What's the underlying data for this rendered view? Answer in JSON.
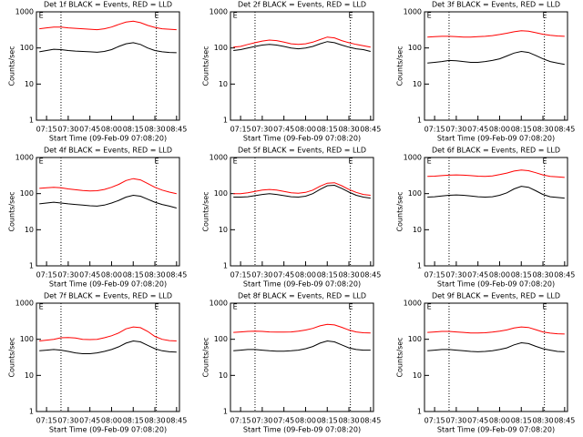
{
  "chart_data": [
    {
      "type": "line",
      "title": "Det 1f BLACK = Events, RED = LLD",
      "xlabel": "Start Time (09-Feb-09 07:08:20)",
      "ylabel": "Counts/sec",
      "log_y": true,
      "x": [
        "07:10",
        "07:15",
        "07:20",
        "07:25",
        "07:30",
        "07:35",
        "07:40",
        "07:45",
        "07:50",
        "07:55",
        "08:00",
        "08:05",
        "08:10",
        "08:15",
        "08:20",
        "08:25",
        "08:30",
        "08:35",
        "08:40",
        "08:45"
      ],
      "xlim": [
        "07:08",
        "08:47"
      ],
      "xticks": [
        "07:15",
        "07:30",
        "07:45",
        "08:00",
        "08:15",
        "08:30",
        "08:45"
      ],
      "ylim": [
        1,
        1000
      ],
      "yticks": [
        1,
        10,
        100,
        1000
      ],
      "markers": [
        "07:25",
        "08:31"
      ],
      "annotations": [
        {
          "text": "E",
          "x": "07:09"
        },
        {
          "text": "E",
          "x": "08:29"
        }
      ],
      "series": [
        {
          "color": "#000000",
          "values": [
            78,
            85,
            92,
            90,
            85,
            82,
            80,
            78,
            76,
            80,
            90,
            110,
            130,
            140,
            125,
            100,
            85,
            78,
            75,
            74
          ]
        },
        {
          "color": "#ff0000",
          "values": [
            340,
            360,
            380,
            380,
            360,
            350,
            340,
            330,
            320,
            340,
            380,
            450,
            520,
            550,
            500,
            420,
            370,
            340,
            330,
            320
          ]
        }
      ]
    },
    {
      "type": "line",
      "title": "Det 2f BLACK = Events, RED = LLD",
      "xlabel": "Start Time (09-Feb-09 07:08:20)",
      "ylabel": "Counts/sec",
      "log_y": true,
      "x": [
        "07:10",
        "07:15",
        "07:20",
        "07:25",
        "07:30",
        "07:35",
        "07:40",
        "07:45",
        "07:50",
        "07:55",
        "08:00",
        "08:05",
        "08:10",
        "08:15",
        "08:20",
        "08:25",
        "08:30",
        "08:35",
        "08:40",
        "08:45"
      ],
      "xlim": [
        "07:08",
        "08:47"
      ],
      "xticks": [
        "07:15",
        "07:30",
        "07:45",
        "08:00",
        "08:15",
        "08:30",
        "08:45"
      ],
      "ylim": [
        1,
        1000
      ],
      "yticks": [
        1,
        10,
        100,
        1000
      ],
      "markers": [
        "07:25",
        "08:31"
      ],
      "annotations": [
        {
          "text": "E",
          "x": "07:09"
        },
        {
          "text": "E",
          "x": "08:29"
        }
      ],
      "series": [
        {
          "color": "#000000",
          "values": [
            85,
            90,
            100,
            110,
            120,
            125,
            120,
            110,
            100,
            95,
            100,
            110,
            130,
            150,
            140,
            120,
            105,
            95,
            90,
            80
          ]
        },
        {
          "color": "#ff0000",
          "values": [
            105,
            110,
            125,
            140,
            155,
            165,
            160,
            145,
            130,
            125,
            130,
            145,
            170,
            200,
            190,
            160,
            140,
            125,
            115,
            105
          ]
        }
      ]
    },
    {
      "type": "line",
      "title": "Det 3f BLACK = Events, RED = LLD",
      "xlabel": "Start Time (09-Feb-09 07:08:20)",
      "ylabel": "Counts/sec",
      "log_y": true,
      "x": [
        "07:10",
        "07:15",
        "07:20",
        "07:25",
        "07:30",
        "07:35",
        "07:40",
        "07:45",
        "07:50",
        "07:55",
        "08:00",
        "08:05",
        "08:10",
        "08:15",
        "08:20",
        "08:25",
        "08:30",
        "08:35",
        "08:40",
        "08:45"
      ],
      "xlim": [
        "07:08",
        "08:47"
      ],
      "xticks": [
        "07:15",
        "07:30",
        "07:45",
        "08:00",
        "08:15",
        "08:30",
        "08:45"
      ],
      "ylim": [
        1,
        1000
      ],
      "yticks": [
        1,
        10,
        100,
        1000
      ],
      "markers": [
        "07:25",
        "08:31"
      ],
      "annotations": [
        {
          "text": "E",
          "x": "07:09"
        },
        {
          "text": "E",
          "x": "08:29"
        }
      ],
      "series": [
        {
          "color": "#000000",
          "values": [
            38,
            40,
            42,
            45,
            44,
            42,
            40,
            40,
            42,
            45,
            50,
            60,
            72,
            80,
            75,
            62,
            50,
            42,
            38,
            35
          ]
        },
        {
          "color": "#ff0000",
          "values": [
            200,
            205,
            210,
            210,
            205,
            200,
            200,
            205,
            210,
            220,
            235,
            255,
            280,
            300,
            290,
            265,
            240,
            225,
            215,
            210
          ]
        }
      ]
    },
    {
      "type": "line",
      "title": "Det 4f BLACK = Events, RED = LLD",
      "xlabel": "Start Time (09-Feb-09 07:08:20)",
      "ylabel": "Counts/sec",
      "log_y": true,
      "x": [
        "07:10",
        "07:15",
        "07:20",
        "07:25",
        "07:30",
        "07:35",
        "07:40",
        "07:45",
        "07:50",
        "07:55",
        "08:00",
        "08:05",
        "08:10",
        "08:15",
        "08:20",
        "08:25",
        "08:30",
        "08:35",
        "08:40",
        "08:45"
      ],
      "xlim": [
        "07:08",
        "08:47"
      ],
      "xticks": [
        "07:15",
        "07:30",
        "07:45",
        "08:00",
        "08:15",
        "08:30",
        "08:45"
      ],
      "ylim": [
        1,
        1000
      ],
      "yticks": [
        1,
        10,
        100,
        1000
      ],
      "markers": [
        "07:25",
        "08:31"
      ],
      "annotations": [
        {
          "text": "E",
          "x": "07:09"
        },
        {
          "text": "E",
          "x": "08:29"
        }
      ],
      "series": [
        {
          "color": "#000000",
          "values": [
            52,
            55,
            58,
            55,
            52,
            50,
            48,
            46,
            45,
            48,
            55,
            65,
            80,
            90,
            85,
            70,
            58,
            50,
            45,
            40
          ]
        },
        {
          "color": "#ff0000",
          "values": [
            140,
            145,
            150,
            145,
            135,
            128,
            122,
            118,
            120,
            130,
            150,
            180,
            230,
            260,
            240,
            190,
            150,
            125,
            110,
            100
          ]
        }
      ]
    },
    {
      "type": "line",
      "title": "Det 5f BLACK = Events, RED = LLD",
      "xlabel": "Start Time (09-Feb-09 07:08:20)",
      "ylabel": "Counts/sec",
      "log_y": true,
      "x": [
        "07:10",
        "07:15",
        "07:20",
        "07:25",
        "07:30",
        "07:35",
        "07:40",
        "07:45",
        "07:50",
        "07:55",
        "08:00",
        "08:05",
        "08:10",
        "08:15",
        "08:20",
        "08:25",
        "08:30",
        "08:35",
        "08:40",
        "08:45"
      ],
      "xlim": [
        "07:08",
        "08:47"
      ],
      "xticks": [
        "07:15",
        "07:30",
        "07:45",
        "08:00",
        "08:15",
        "08:30",
        "08:45"
      ],
      "ylim": [
        1,
        1000
      ],
      "yticks": [
        1,
        10,
        100,
        1000
      ],
      "markers": [
        "07:25",
        "08:31"
      ],
      "annotations": [
        {
          "text": "E",
          "x": "07:09"
        },
        {
          "text": "E",
          "x": "08:29"
        }
      ],
      "series": [
        {
          "color": "#000000",
          "values": [
            80,
            80,
            82,
            88,
            95,
            100,
            95,
            88,
            82,
            80,
            85,
            100,
            130,
            165,
            170,
            140,
            110,
            90,
            80,
            75
          ]
        },
        {
          "color": "#ff0000",
          "values": [
            100,
            100,
            105,
            115,
            125,
            130,
            125,
            115,
            105,
            102,
            108,
            125,
            160,
            195,
            200,
            165,
            130,
            108,
            95,
            90
          ]
        }
      ]
    },
    {
      "type": "line",
      "title": "Det 6f BLACK = Events, RED = LLD",
      "xlabel": "Start Time (09-Feb-09 07:08:20)",
      "ylabel": "Counts/sec",
      "log_y": true,
      "x": [
        "07:10",
        "07:15",
        "07:20",
        "07:25",
        "07:30",
        "07:35",
        "07:40",
        "07:45",
        "07:50",
        "07:55",
        "08:00",
        "08:05",
        "08:10",
        "08:15",
        "08:20",
        "08:25",
        "08:30",
        "08:35",
        "08:40",
        "08:45"
      ],
      "xlim": [
        "07:08",
        "08:47"
      ],
      "xticks": [
        "07:15",
        "07:30",
        "07:45",
        "08:00",
        "08:15",
        "08:30",
        "08:45"
      ],
      "ylim": [
        1,
        1000
      ],
      "yticks": [
        1,
        10,
        100,
        1000
      ],
      "markers": [
        "07:25",
        "08:31"
      ],
      "annotations": [
        {
          "text": "E",
          "x": "07:09"
        },
        {
          "text": "E",
          "x": "08:29"
        }
      ],
      "series": [
        {
          "color": "#000000",
          "values": [
            80,
            82,
            86,
            90,
            92,
            90,
            86,
            82,
            80,
            82,
            90,
            105,
            135,
            160,
            150,
            120,
            95,
            82,
            78,
            75
          ]
        },
        {
          "color": "#ff0000",
          "values": [
            300,
            305,
            315,
            325,
            330,
            325,
            315,
            305,
            300,
            310,
            335,
            370,
            420,
            450,
            430,
            380,
            330,
            300,
            290,
            280
          ]
        }
      ]
    },
    {
      "type": "line",
      "title": "Det 7f BLACK = Events, RED = LLD",
      "xlabel": "Start Time (09-Feb-09 07:08:20)",
      "ylabel": "Counts/sec",
      "log_y": true,
      "x": [
        "07:10",
        "07:15",
        "07:20",
        "07:25",
        "07:30",
        "07:35",
        "07:40",
        "07:45",
        "07:50",
        "07:55",
        "08:00",
        "08:05",
        "08:10",
        "08:15",
        "08:20",
        "08:25",
        "08:30",
        "08:35",
        "08:40",
        "08:45"
      ],
      "xlim": [
        "07:08",
        "08:47"
      ],
      "xticks": [
        "07:15",
        "07:30",
        "07:45",
        "08:00",
        "08:15",
        "08:30",
        "08:45"
      ],
      "ylim": [
        1,
        1000
      ],
      "yticks": [
        1,
        10,
        100,
        1000
      ],
      "markers": [
        "07:25",
        "08:31"
      ],
      "annotations": [
        {
          "text": "E",
          "x": "07:09"
        },
        {
          "text": "E",
          "x": "08:29"
        }
      ],
      "series": [
        {
          "color": "#000000",
          "values": [
            48,
            50,
            52,
            50,
            46,
            42,
            40,
            40,
            42,
            46,
            52,
            62,
            78,
            90,
            85,
            68,
            55,
            48,
            45,
            44
          ]
        },
        {
          "color": "#ff0000",
          "values": [
            90,
            95,
            100,
            110,
            112,
            108,
            100,
            98,
            100,
            110,
            125,
            150,
            195,
            220,
            210,
            165,
            120,
            100,
            92,
            90
          ]
        }
      ]
    },
    {
      "type": "line",
      "title": "Det 8f BLACK = Events, RED = LLD",
      "xlabel": "Start Time (09-Feb-09 07:08:20)",
      "ylabel": "Counts/sec",
      "log_y": true,
      "x": [
        "07:10",
        "07:15",
        "07:20",
        "07:25",
        "07:30",
        "07:35",
        "07:40",
        "07:45",
        "07:50",
        "07:55",
        "08:00",
        "08:05",
        "08:10",
        "08:15",
        "08:20",
        "08:25",
        "08:30",
        "08:35",
        "08:40",
        "08:45"
      ],
      "xlim": [
        "07:08",
        "08:47"
      ],
      "xticks": [
        "07:15",
        "07:30",
        "07:45",
        "08:00",
        "08:15",
        "08:30",
        "08:45"
      ],
      "ylim": [
        1,
        1000
      ],
      "yticks": [
        1,
        10,
        100,
        1000
      ],
      "markers": [
        "07:25",
        "08:31"
      ],
      "annotations": [
        {
          "text": "E",
          "x": "07:09"
        },
        {
          "text": "E",
          "x": "08:29"
        }
      ],
      "series": [
        {
          "color": "#000000",
          "values": [
            48,
            50,
            52,
            52,
            50,
            48,
            47,
            47,
            48,
            50,
            55,
            63,
            78,
            90,
            85,
            70,
            58,
            52,
            50,
            50
          ]
        },
        {
          "color": "#ff0000",
          "values": [
            155,
            160,
            165,
            168,
            165,
            160,
            158,
            158,
            160,
            168,
            180,
            200,
            235,
            260,
            250,
            215,
            180,
            160,
            152,
            150
          ]
        }
      ]
    },
    {
      "type": "line",
      "title": "Det 9f BLACK = Events, RED = LLD",
      "xlabel": "Start Time (09-Feb-09 07:08:20)",
      "ylabel": "Counts/sec",
      "log_y": true,
      "x": [
        "07:10",
        "07:15",
        "07:20",
        "07:25",
        "07:30",
        "07:35",
        "07:40",
        "07:45",
        "07:50",
        "07:55",
        "08:00",
        "08:05",
        "08:10",
        "08:15",
        "08:20",
        "08:25",
        "08:30",
        "08:35",
        "08:40",
        "08:45"
      ],
      "xlim": [
        "07:08",
        "08:47"
      ],
      "xticks": [
        "07:15",
        "07:30",
        "07:45",
        "08:00",
        "08:15",
        "08:30",
        "08:45"
      ],
      "ylim": [
        1,
        1000
      ],
      "yticks": [
        1,
        10,
        100,
        1000
      ],
      "markers": [
        "07:25",
        "08:31"
      ],
      "annotations": [
        {
          "text": "E",
          "x": "07:09"
        },
        {
          "text": "E",
          "x": "08:29"
        }
      ],
      "series": [
        {
          "color": "#000000",
          "values": [
            48,
            50,
            52,
            52,
            50,
            48,
            46,
            45,
            46,
            48,
            52,
            58,
            70,
            80,
            76,
            64,
            55,
            50,
            46,
            45
          ]
        },
        {
          "color": "#ff0000",
          "values": [
            155,
            160,
            165,
            165,
            160,
            155,
            150,
            150,
            152,
            158,
            168,
            182,
            205,
            220,
            212,
            185,
            160,
            148,
            142,
            140
          ]
        }
      ]
    }
  ]
}
